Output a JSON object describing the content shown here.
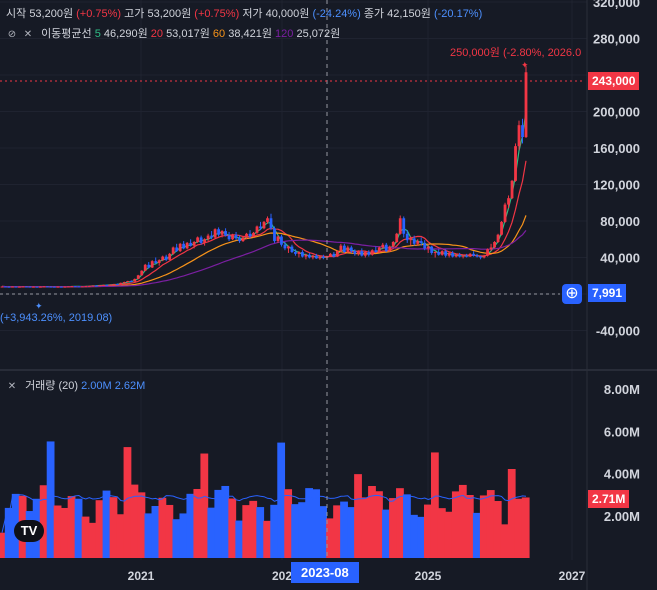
{
  "ohlc": {
    "open_label": "시작",
    "open_value": "53,200원",
    "open_change": "(+0.75%)",
    "high_label": "고가",
    "high_value": "53,200원",
    "high_change": "(+0.75%)",
    "low_label": "저가",
    "low_value": "40,000원",
    "low_change": "(-24.24%)",
    "close_label": "종가",
    "close_value": "42,150원",
    "close_change": "(-20.17%)"
  },
  "ma_legend": {
    "title": "이동평균선",
    "items": [
      {
        "period": "5",
        "value": "46,290원",
        "color": "#2ebd85"
      },
      {
        "period": "20",
        "value": "53,017원",
        "color": "#f23645"
      },
      {
        "period": "60",
        "value": "38,421원",
        "color": "#f7931a"
      },
      {
        "period": "120",
        "value": "25,072원",
        "color": "#7b1fa2"
      }
    ]
  },
  "volume_legend": {
    "title": "거래량 (20)",
    "value1": "2.00M",
    "value2": "2.62M"
  },
  "annotations": {
    "high_label": "250,000원 (-2.80%, 2026.0",
    "low_label": "(+3,943.26%, 2019.08)",
    "current_price": "243,000",
    "low_price": "7,991",
    "volume_current": "2.71M",
    "crosshair_date": "2023-08"
  },
  "colors": {
    "up": "#f23645",
    "down": "#2962ff",
    "background": "#161a25"
  },
  "chart_data": [
    {
      "type": "candlestick",
      "y_axis": {
        "ticks": [
          -40000,
          0,
          40000,
          80000,
          120000,
          160000,
          200000,
          240000,
          280000,
          320000
        ],
        "tick_labels": [
          "-40,000",
          "",
          "40,000",
          "80,000",
          "120,000",
          "160,000",
          "200,000",
          "",
          "280,000",
          "320,000"
        ],
        "range": [
          -80000,
          330000
        ]
      },
      "x_axis": {
        "tick_labels": [
          "2021",
          "202",
          "2025",
          "2027"
        ]
      },
      "candles": [
        [
          8000,
          8500,
          7800,
          8200
        ],
        [
          8200,
          8400,
          7900,
          8000
        ],
        [
          8000,
          8300,
          7700,
          7900
        ],
        [
          7900,
          8200,
          7600,
          8100
        ],
        [
          8100,
          8300,
          7800,
          7900
        ],
        [
          7900,
          8100,
          7700,
          8000
        ],
        [
          8000,
          8300,
          7800,
          8200
        ],
        [
          8200,
          8400,
          7900,
          8100
        ],
        [
          8100,
          8300,
          7800,
          7900
        ],
        [
          7900,
          8100,
          7600,
          8000
        ],
        [
          8000,
          8200,
          7800,
          7850
        ],
        [
          7850,
          8100,
          7700,
          8000
        ],
        [
          8000,
          8400,
          7900,
          8300
        ],
        [
          8300,
          8500,
          8000,
          8100
        ],
        [
          8100,
          8300,
          7900,
          8000
        ],
        [
          8000,
          8200,
          7700,
          7800
        ],
        [
          7800,
          8100,
          7500,
          8000
        ],
        [
          8000,
          8200,
          7800,
          7900
        ],
        [
          7900,
          8100,
          7700,
          8000
        ],
        [
          8000,
          8300,
          7900,
          8200
        ],
        [
          8200,
          8600,
          8100,
          8500
        ],
        [
          8500,
          8700,
          8200,
          8300
        ],
        [
          8300,
          8500,
          8000,
          8100
        ],
        [
          8100,
          8400,
          7991,
          8300
        ],
        [
          8300,
          8700,
          8200,
          8600
        ],
        [
          8600,
          9000,
          8400,
          8900
        ],
        [
          8900,
          9500,
          8700,
          9300
        ],
        [
          9300,
          9600,
          8900,
          9000
        ],
        [
          9000,
          9800,
          8900,
          9600
        ],
        [
          9600,
          10200,
          9400,
          10000
        ],
        [
          10000,
          10500,
          9700,
          9800
        ],
        [
          9800,
          10600,
          9600,
          10400
        ],
        [
          10400,
          11000,
          10100,
          10900
        ],
        [
          10900,
          11500,
          10500,
          10700
        ],
        [
          10700,
          12500,
          10600,
          12200
        ],
        [
          12200,
          13500,
          11800,
          13100
        ],
        [
          13100,
          14500,
          12800,
          14200
        ],
        [
          14200,
          15000,
          13200,
          13600
        ],
        [
          13600,
          17000,
          13400,
          16500
        ],
        [
          16500,
          21000,
          16200,
          20500
        ],
        [
          20500,
          26000,
          20000,
          25500
        ],
        [
          25500,
          33000,
          25000,
          32000
        ],
        [
          32000,
          35000,
          28000,
          29000
        ],
        [
          29000,
          37000,
          28500,
          36000
        ],
        [
          36000,
          40000,
          33000,
          34000
        ],
        [
          34000,
          38000,
          31000,
          37000
        ],
        [
          37000,
          42000,
          36000,
          41000
        ],
        [
          41000,
          43000,
          36000,
          37500
        ],
        [
          37500,
          45000,
          37000,
          44000
        ],
        [
          44000,
          52000,
          43000,
          51000
        ],
        [
          51000,
          55000,
          46000,
          47000
        ],
        [
          47000,
          56000,
          46000,
          55000
        ],
        [
          55000,
          58000,
          49000,
          50000
        ],
        [
          50000,
          57000,
          49000,
          56000
        ],
        [
          56000,
          60000,
          52000,
          53000
        ],
        [
          53000,
          58000,
          50000,
          57000
        ],
        [
          57000,
          63000,
          56000,
          62000
        ],
        [
          62000,
          64000,
          54000,
          56000
        ],
        [
          56000,
          61000,
          53000,
          60000
        ],
        [
          60000,
          66000,
          58000,
          64000
        ],
        [
          64000,
          69000,
          60000,
          62000
        ],
        [
          62000,
          72000,
          61000,
          71000
        ],
        [
          71000,
          73000,
          63000,
          65000
        ],
        [
          65000,
          70000,
          62000,
          69000
        ],
        [
          69000,
          72000,
          63000,
          64000
        ],
        [
          64000,
          68000,
          58000,
          60000
        ],
        [
          60000,
          66000,
          59000,
          65000
        ],
        [
          65000,
          68000,
          59000,
          61000
        ],
        [
          61000,
          64000,
          56000,
          58000
        ],
        [
          58000,
          63000,
          57000,
          62000
        ],
        [
          62000,
          67000,
          60000,
          66000
        ],
        [
          66000,
          70000,
          61000,
          63000
        ],
        [
          63000,
          68000,
          62000,
          67000
        ],
        [
          67000,
          75000,
          66000,
          74000
        ],
        [
          74000,
          79000,
          70000,
          72000
        ],
        [
          72000,
          80000,
          71000,
          79000
        ],
        [
          79000,
          85000,
          77000,
          83000
        ],
        [
          83000,
          88000,
          70000,
          72000
        ],
        [
          72000,
          74000,
          56000,
          58000
        ],
        [
          58000,
          64000,
          56000,
          63000
        ],
        [
          63000,
          65000,
          52000,
          54000
        ],
        [
          54000,
          57000,
          48000,
          50000
        ],
        [
          50000,
          53000,
          45000,
          52000
        ],
        [
          52000,
          54000,
          45000,
          46000
        ],
        [
          46000,
          49000,
          42000,
          44000
        ],
        [
          44000,
          47000,
          40000,
          46000
        ],
        [
          46000,
          48000,
          40000,
          41000
        ],
        [
          41000,
          44000,
          38000,
          43000
        ],
        [
          43000,
          45000,
          39000,
          40000
        ],
        [
          40000,
          43000,
          38000,
          42000
        ],
        [
          42000,
          44000,
          38500,
          39000
        ],
        [
          39000,
          42000,
          37500,
          41000
        ],
        [
          41000,
          43000,
          38000,
          39500
        ],
        [
          39500,
          42000,
          38000,
          41500
        ],
        [
          41500,
          45000,
          41000,
          44000
        ],
        [
          44000,
          46000,
          40000,
          41000
        ],
        [
          41000,
          48000,
          40500,
          47000
        ],
        [
          47000,
          55000,
          46000,
          53000
        ],
        [
          53000,
          55000,
          45000,
          46000
        ],
        [
          46000,
          53000,
          45000,
          51000
        ],
        [
          51000,
          53000,
          45000,
          47000
        ],
        [
          47000,
          49000,
          42000,
          44000
        ],
        [
          44000,
          48000,
          42000,
          47000
        ],
        [
          47000,
          50000,
          41000,
          42000
        ],
        [
          42000,
          47000,
          40000,
          46000
        ],
        [
          46000,
          48000,
          41000,
          43000
        ],
        [
          43000,
          49000,
          42000,
          48000
        ],
        [
          48000,
          52000,
          45000,
          46000
        ],
        [
          46000,
          52000,
          45000,
          51000
        ],
        [
          51000,
          56000,
          49000,
          54000
        ],
        [
          54000,
          56000,
          46000,
          47000
        ],
        [
          47000,
          53000,
          46000,
          52000
        ],
        [
          52000,
          58000,
          51000,
          57000
        ],
        [
          57000,
          67000,
          56000,
          66000
        ],
        [
          66000,
          86000,
          65000,
          83000
        ],
        [
          83000,
          85000,
          62000,
          66000
        ],
        [
          66000,
          70000,
          56000,
          59000
        ],
        [
          59000,
          63000,
          53000,
          61000
        ],
        [
          61000,
          64000,
          53000,
          55000
        ],
        [
          55000,
          60000,
          53000,
          58000
        ],
        [
          58000,
          62000,
          53000,
          56000
        ],
        [
          56000,
          59000,
          48000,
          50000
        ],
        [
          50000,
          54000,
          45000,
          52000
        ],
        [
          52000,
          53000,
          43000,
          45000
        ],
        [
          45000,
          47000,
          40000,
          46000
        ],
        [
          46000,
          49000,
          42000,
          43000
        ],
        [
          43000,
          48000,
          42000,
          47000
        ],
        [
          47000,
          49000,
          40000,
          42000
        ],
        [
          42000,
          46000,
          40000,
          45000
        ],
        [
          45000,
          47000,
          40000,
          41000
        ],
        [
          41000,
          44000,
          40000,
          43000
        ],
        [
          43000,
          45000,
          40000,
          41000
        ],
        [
          41000,
          43000,
          39000,
          42000
        ],
        [
          42000,
          44000,
          40000,
          41000
        ],
        [
          41000,
          45000,
          40500,
          44000
        ],
        [
          44000,
          47000,
          41000,
          42000
        ],
        [
          42000,
          44000,
          40000,
          41000
        ],
        [
          41000,
          42000,
          38000,
          40000
        ],
        [
          40000,
          43000,
          39000,
          42000
        ],
        [
          42000,
          50000,
          41000,
          49000
        ],
        [
          49000,
          55000,
          47000,
          51000
        ],
        [
          51000,
          58000,
          50000,
          57000
        ],
        [
          57000,
          66000,
          56000,
          65000
        ],
        [
          65000,
          80000,
          64000,
          79000
        ],
        [
          79000,
          100000,
          78000,
          98000
        ],
        [
          98000,
          108000,
          94000,
          105000
        ],
        [
          105000,
          125000,
          104000,
          124000
        ],
        [
          124000,
          165000,
          123000,
          162000
        ],
        [
          162000,
          190000,
          158000,
          185000
        ],
        [
          185000,
          192000,
          165000,
          172000
        ],
        [
          172000,
          250000,
          171000,
          243000
        ]
      ],
      "ma_lines": [
        {
          "name": "5",
          "color": "#2ebd85"
        },
        {
          "name": "20",
          "color": "#f23645"
        },
        {
          "name": "60",
          "color": "#f7931a"
        },
        {
          "name": "120",
          "color": "#7b1fa2"
        }
      ]
    },
    {
      "type": "bar",
      "name": "volume",
      "y_axis": {
        "ticks": [
          2000000,
          4000000,
          6000000,
          8000000
        ],
        "tick_labels": [
          "2.00M",
          "4.00M",
          "6.00M",
          "8.00M"
        ]
      }
    }
  ]
}
